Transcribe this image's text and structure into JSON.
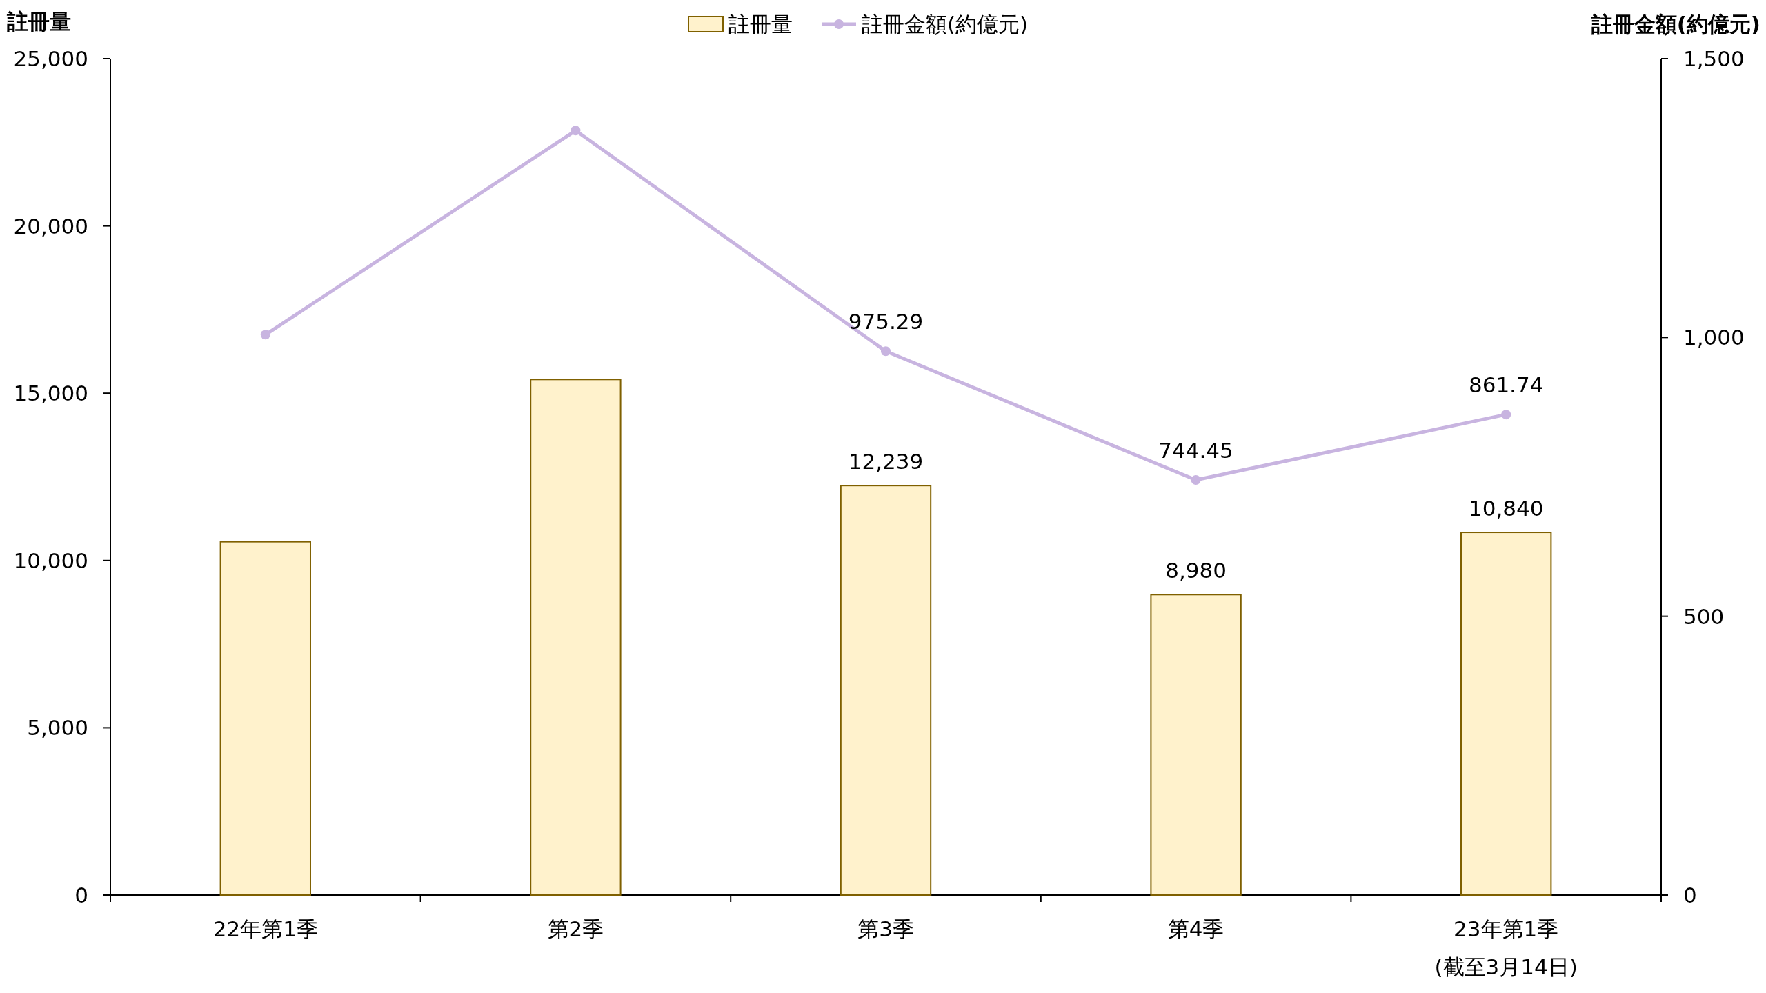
{
  "chart_data": {
    "type": "bar",
    "ylabel": "註冊量",
    "y2label": "註冊金額(約億元)",
    "categories": [
      "22年第1季",
      "第2季",
      "第3季",
      "第4季",
      "23年第1季\n(截至3月14日)"
    ],
    "series": [
      {
        "name": "註冊量",
        "color": "#fff2cc",
        "values": [
          10560,
          15410,
          12239,
          8980,
          10840
        ],
        "value_labels": [
          null,
          null,
          "12,239",
          "8,980",
          "10,840"
        ]
      },
      {
        "name": "註冊金額(約億元)",
        "type": "line",
        "axis": "y2",
        "color": "#c8b4e0",
        "marker": "circle",
        "values": [
          1005,
          1371,
          975.29,
          744.45,
          861.74
        ],
        "value_labels": [
          null,
          null,
          "975.29",
          "744.45",
          "861.74"
        ]
      }
    ],
    "ylim": [
      0,
      25000
    ],
    "yticks": [
      0,
      {
        "value": 5000,
        "label": "5,000"
      },
      {
        "value": 10000,
        "label": "10,000"
      },
      {
        "value": 15000,
        "label": "15,000"
      },
      {
        "value": 20000,
        "label": "20,000"
      },
      {
        "value": 25000,
        "label": "25,000"
      }
    ],
    "y2lim": [
      0,
      1500
    ],
    "y2ticks": [
      0,
      500,
      {
        "value": 1000,
        "label": "1,000"
      },
      {
        "value": 1500,
        "label": "1,500"
      }
    ],
    "legend": "top",
    "grid": false
  }
}
